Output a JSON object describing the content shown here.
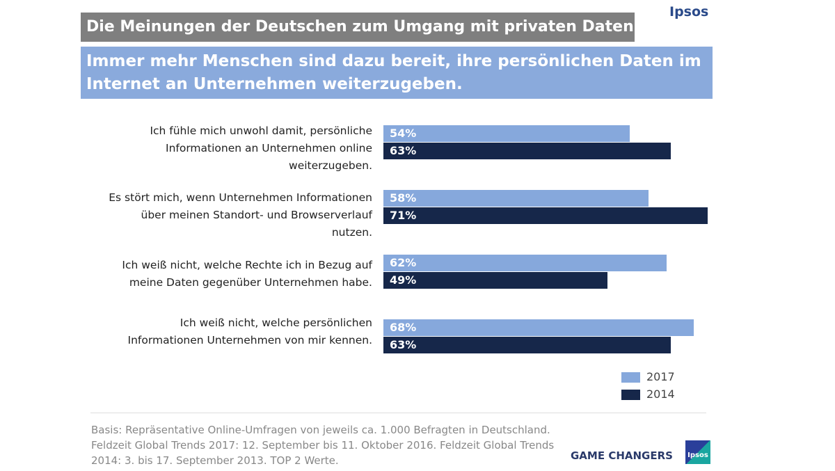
{
  "brand": "Ipsos",
  "title": "Die Meinungen der Deutschen zum Umgang mit privaten Daten",
  "subtitle": "Immer mehr Menschen sind dazu bereit, ihre persönlichen Daten im Internet an Unternehmen weiterzugeben.",
  "colors": {
    "2017": "#86a8dc",
    "2014": "#16274a"
  },
  "chart_data": {
    "type": "bar",
    "orientation": "horizontal",
    "categories": [
      "Ich fühle mich unwohl damit, persönliche\nInformationen an Unternehmen online\nweiterzugeben.",
      "Es stört mich, wenn Unternehmen Informationen\nüber meinen Standort- und Browserverlauf\nnutzen.",
      "Ich weiß nicht, welche Rechte ich in Bezug auf\nmeine Daten gegenüber Unternehmen habe.",
      "Ich weiß nicht, welche persönlichen\nInformationen Unternehmen von mir kennen."
    ],
    "series": [
      {
        "name": "2017",
        "values": [
          54,
          58,
          62,
          68
        ],
        "labels": [
          "54%",
          "58%",
          "62%",
          "68%"
        ]
      },
      {
        "name": "2014",
        "values": [
          63,
          71,
          49,
          63
        ],
        "labels": [
          "63%",
          "71%",
          "49%",
          "63%"
        ]
      }
    ],
    "xlim": [
      0,
      71
    ],
    "grid": false,
    "legend": "bottom-right"
  },
  "footer": {
    "basis": "Basis: Repräsentative Online-Umfragen von jeweils ca. 1.000 Befragten in Deutschland. Feldzeit Global Trends 2017: 12. September bis 11. Oktober 2016. Feldzeit Global Trends 2014: 3. bis 17. September 2013. TOP 2 Werte.",
    "tagline": "GAME CHANGERS",
    "logo_text": "Ipsos"
  }
}
